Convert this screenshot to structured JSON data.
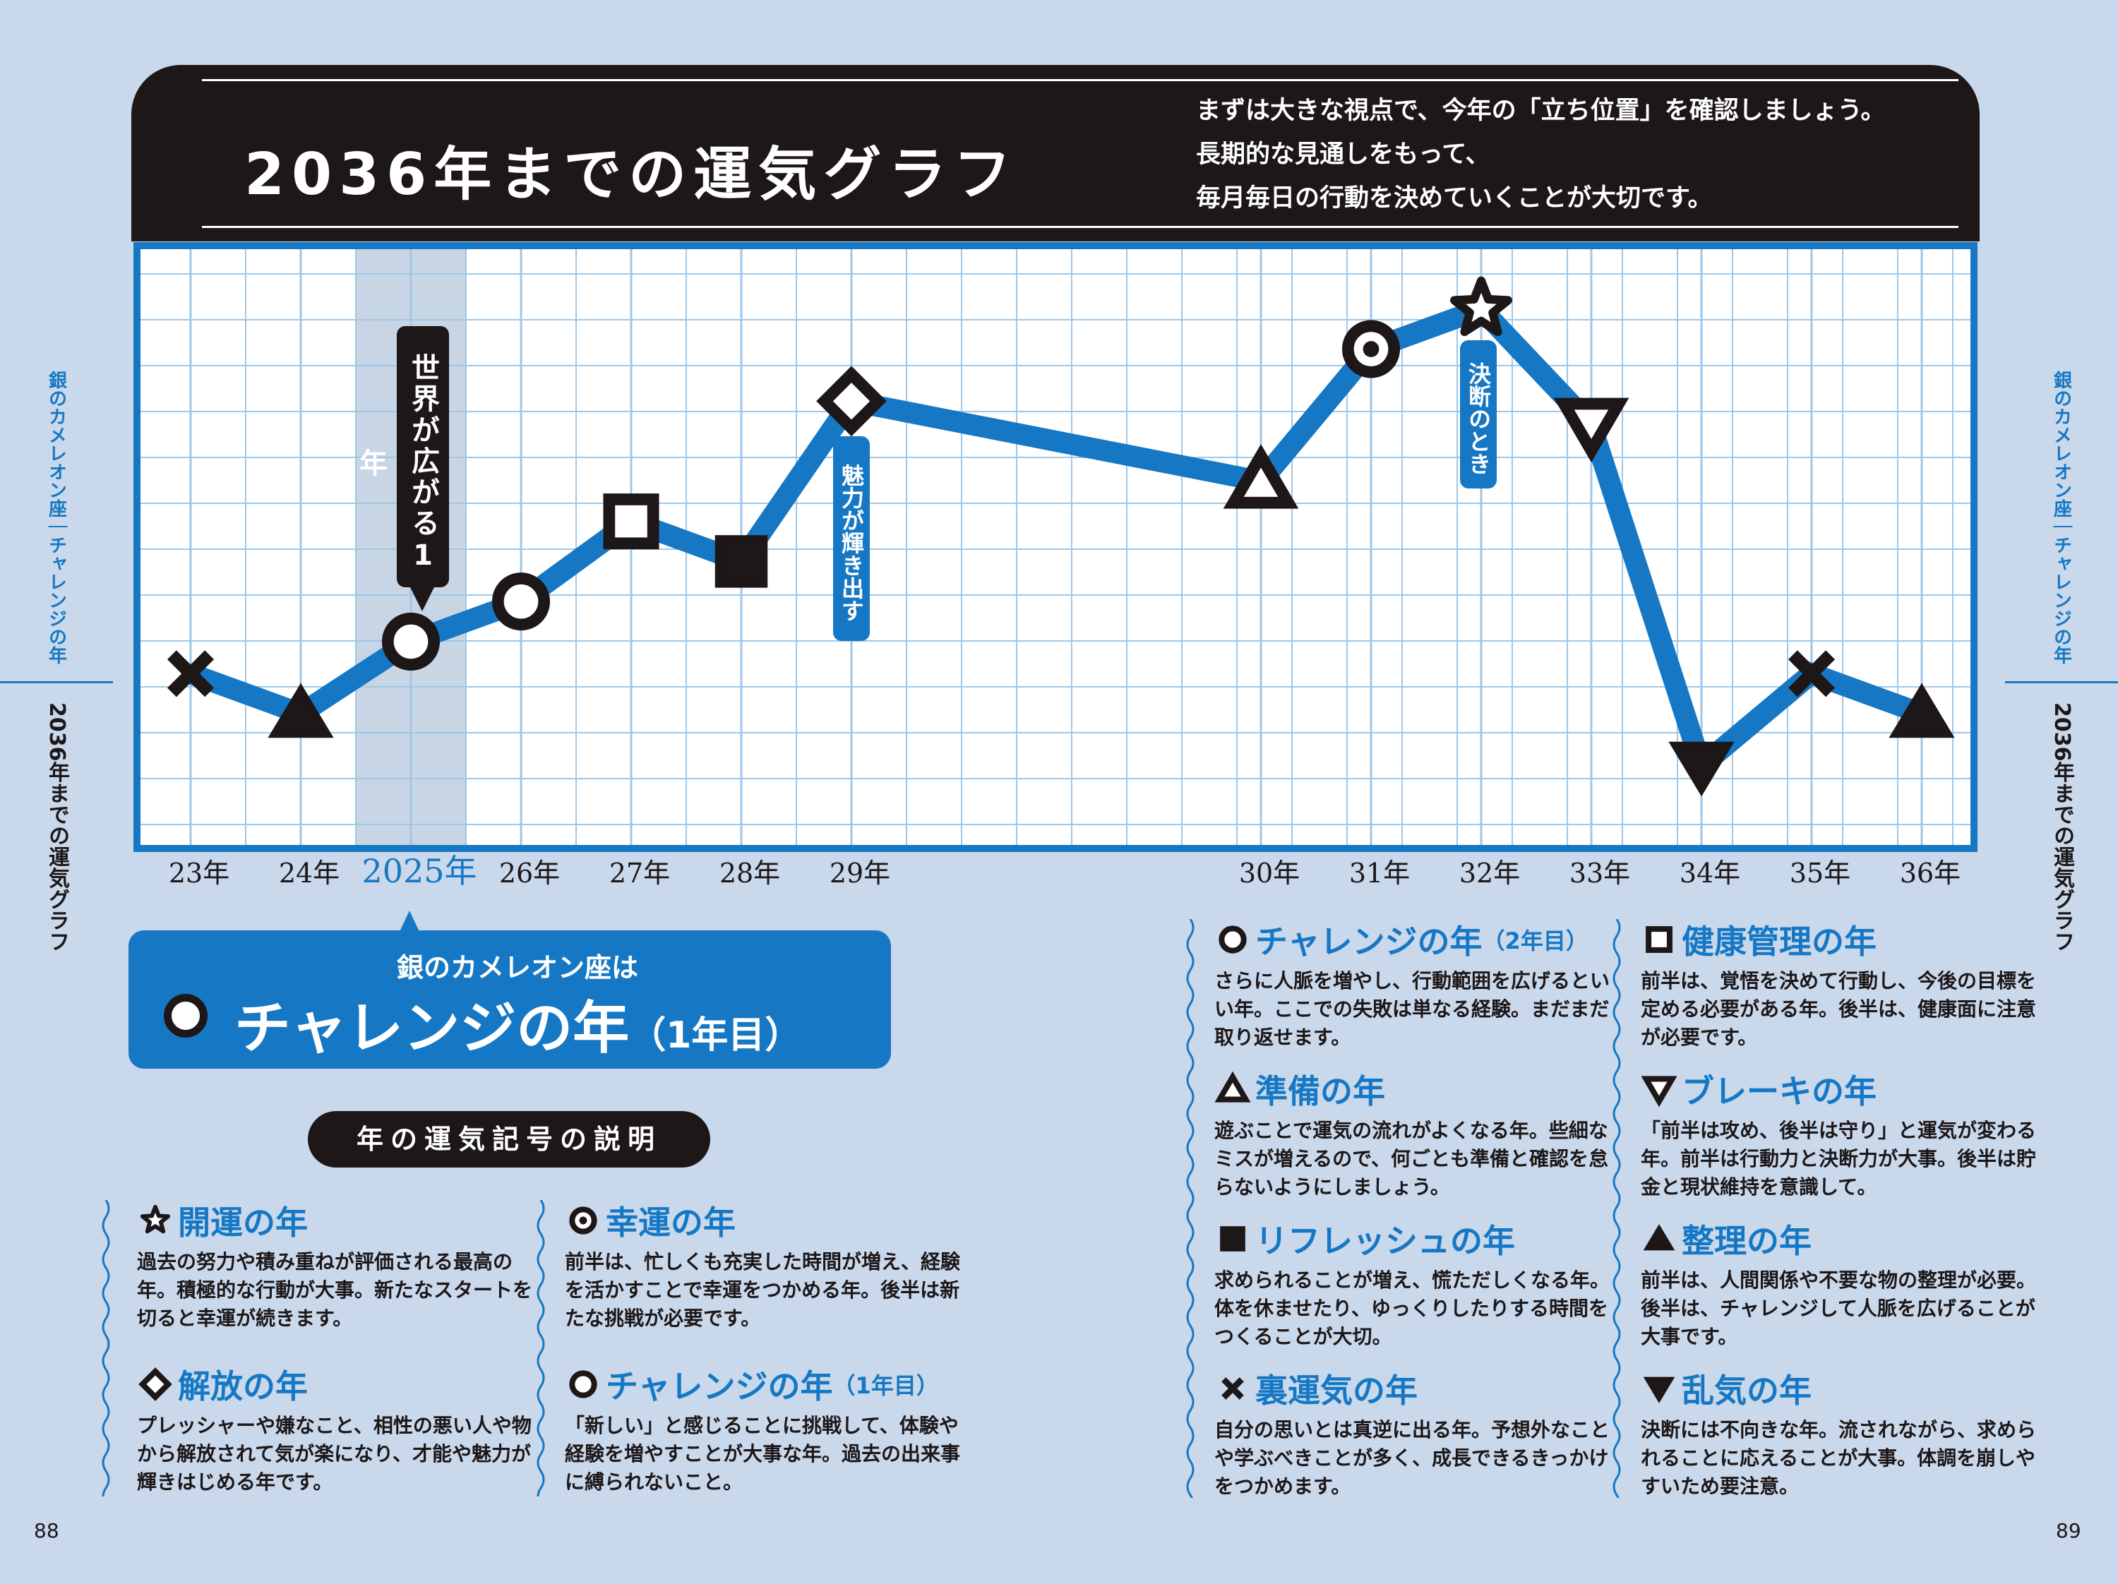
{
  "header": {
    "title": "2036年までの運気グラフ",
    "intro": [
      "まずは大きな視点で、今年の「立ち位置」を確認しましょう。",
      "長期的な見通しをもって、",
      "毎月毎日の行動を決めていくことが大切です。"
    ]
  },
  "chart_data": {
    "type": "line",
    "title": "2036年までの運気グラフ",
    "categories": [
      "23年",
      "24年",
      "2025年",
      "26年",
      "27年",
      "28年",
      "29年",
      "30年",
      "31年",
      "32年",
      "33年",
      "34年",
      "35年",
      "36年"
    ],
    "values": [
      3.2,
      2.2,
      4.0,
      5.0,
      7.0,
      6.0,
      10.0,
      8.0,
      11.3,
      12.3,
      9.4,
      0.9,
      3.2,
      2.2
    ],
    "symbols": [
      "cross",
      "tri-filled",
      "circle",
      "circle",
      "square",
      "square-filled",
      "diamond",
      "triangle",
      "double-circle",
      "star",
      "tri-down",
      "tri-down-filled",
      "cross",
      "tri-filled"
    ],
    "highlight": "2025年",
    "ylim": [
      0,
      13
    ],
    "grid": true,
    "annotations": {
      "2025": "世界が広がる1年",
      "29": "魅力が輝き出す",
      "32": "決断のとき"
    },
    "colors": {
      "line": "#1678c4",
      "grid": "#9ec7e8",
      "highlight": "#c8d5e5",
      "ink": "#1d1718"
    }
  },
  "sidebar": {
    "sign": "銀のカメレオン座",
    "year": "チャレンジの年",
    "section": "2036年までの運気グラフ"
  },
  "you": {
    "sub": "銀のカメレオン座は",
    "main": "チャレンジの年",
    "paren": "（1年目）"
  },
  "legend_title": "年の運気記号の説明",
  "legend": [
    {
      "sym": "star",
      "title": "開運の年",
      "sub": "",
      "text": "過去の努力や積み重ねが評価される最高の年。積極的な行動が大事。新たなスタートを切ると幸運が続きます。"
    },
    {
      "sym": "double-circle",
      "title": "幸運の年",
      "sub": "",
      "text": "前半は、忙しくも充実した時間が増え、経験を活かすことで幸運をつかめる年。後半は新たな挑戦が必要です。"
    },
    {
      "sym": "diamond",
      "title": "解放の年",
      "sub": "",
      "text": "プレッシャーや嫌なこと、相性の悪い人や物から解放されて気が楽になり、才能や魅力が輝きはじめる年です。"
    },
    {
      "sym": "circle",
      "title": "チャレンジの年",
      "sub": "（1年目）",
      "text": "「新しい」と感じることに挑戦して、体験や経験を増やすことが大事な年。過去の出来事に縛られないこと。"
    },
    {
      "sym": "circle",
      "title": "チャレンジの年",
      "sub": "（2年目）",
      "text": "さらに人脈を増やし、行動範囲を広げるといい年。ここでの失敗は単なる経験。まだまだ取り返せます。"
    },
    {
      "sym": "triangle",
      "title": "準備の年",
      "sub": "",
      "text": "遊ぶことで運気の流れがよくなる年。些細なミスが増えるので、何ごとも準備と確認を怠らないようにしましょう。"
    },
    {
      "sym": "square-filled",
      "title": "リフレッシュの年",
      "sub": "",
      "text": "求められることが増え、慌ただしくなる年。体を休ませたり、ゆっくりしたりする時間をつくることが大切。"
    },
    {
      "sym": "cross",
      "title": "裏運気の年",
      "sub": "",
      "text": "自分の思いとは真逆に出る年。予想外なことや学ぶべきことが多く、成長できるきっかけをつかめます。"
    },
    {
      "sym": "square",
      "title": "健康管理の年",
      "sub": "",
      "text": "前半は、覚悟を決めて行動し、今後の目標を定める必要がある年。後半は、健康面に注意が必要です。"
    },
    {
      "sym": "tri-down",
      "title": "ブレーキの年",
      "sub": "",
      "text": "「前半は攻め、後半は守り」と運気が変わる年。前半は行動力と決断力が大事。後半は貯金と現状維持を意識して。"
    },
    {
      "sym": "tri-filled",
      "title": "整理の年",
      "sub": "",
      "text": "前半は、人間関係や不要な物の整理が必要。後半は、チャレンジして人脈を広げることが大事です。"
    },
    {
      "sym": "tri-down-filled",
      "title": "乱気の年",
      "sub": "",
      "text": "決断には不向きな年。流されながら、求められることに応えることが大事。体調を崩しやすいため要注意。"
    }
  ],
  "pages": {
    "left": "88",
    "right": "89"
  }
}
